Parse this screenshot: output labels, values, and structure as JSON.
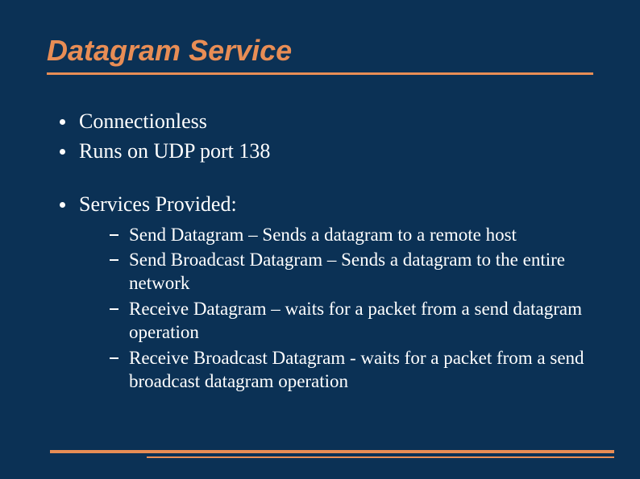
{
  "colors": {
    "background": "#0b3155",
    "accent": "#e88d55",
    "text": "#ffffff"
  },
  "title": "Datagram Service",
  "bullets": {
    "b1": "Connectionless",
    "b2": "Runs on UDP port 138",
    "b3": "Services Provided:"
  },
  "services": {
    "s1": "Send Datagram – Sends a datagram to a remote host",
    "s2": "Send Broadcast Datagram – Sends a datagram to the entire network",
    "s3": "Receive Datagram – waits for a packet from a send datagram operation",
    "s4": "Receive Broadcast Datagram - waits for a packet from a send broadcast datagram operation"
  }
}
